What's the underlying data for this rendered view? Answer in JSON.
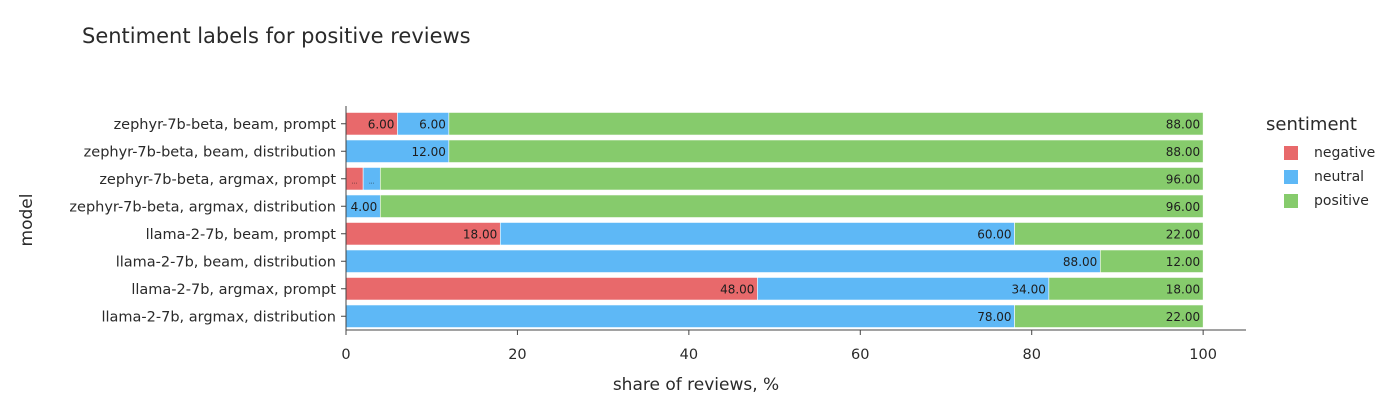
{
  "chart_data": {
    "type": "bar",
    "orientation": "horizontal",
    "stacked": true,
    "title": "Sentiment labels for positive reviews",
    "xlabel": "share of reviews, %",
    "ylabel": "model",
    "xlim": [
      0,
      105
    ],
    "xticks": [
      0,
      20,
      40,
      60,
      80,
      100
    ],
    "grid": false,
    "legend_title": "sentiment",
    "legend_position": "right",
    "categories": [
      "zephyr-7b-beta, beam, prompt",
      "zephyr-7b-beta, beam, distribution",
      "zephyr-7b-beta, argmax, prompt",
      "zephyr-7b-beta, argmax, distribution",
      "llama-2-7b, beam, prompt",
      "llama-2-7b, beam, distribution",
      "llama-2-7b, argmax, prompt",
      "llama-2-7b, argmax, distribution"
    ],
    "series": [
      {
        "name": "negative",
        "color": "#e8696b",
        "values": [
          6,
          0,
          2,
          0,
          18,
          0,
          48,
          0
        ]
      },
      {
        "name": "neutral",
        "color": "#5eb8f6",
        "values": [
          6,
          12,
          2,
          4,
          60,
          88,
          34,
          78
        ]
      },
      {
        "name": "positive",
        "color": "#86cb6c",
        "values": [
          88,
          88,
          96,
          96,
          22,
          12,
          18,
          22
        ]
      }
    ]
  }
}
